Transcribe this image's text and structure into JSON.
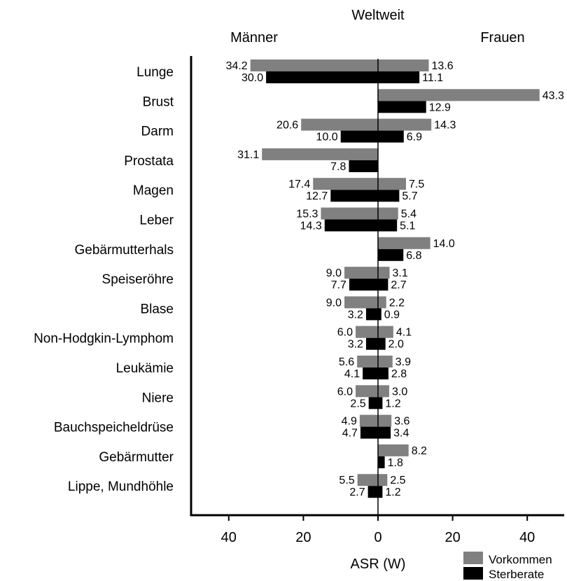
{
  "chart_data": {
    "type": "bar",
    "orientation": "horizontal-butterfly",
    "title": "Weltweit",
    "left_label": "Männer",
    "right_label": "Frauen",
    "xlabel": "ASR (W)",
    "xlim": [
      -50,
      50
    ],
    "x_ticks": [
      -40,
      -20,
      0,
      20,
      40
    ],
    "x_tick_labels": [
      "40",
      "20",
      "0",
      "20",
      "40"
    ],
    "grid": false,
    "legend_position": "bottom-right",
    "categories": [
      "Lunge",
      "Brust",
      "Darm",
      "Prostata",
      "Magen",
      "Leber",
      "Gebärmutterhals",
      "Speiseröhre",
      "Blase",
      "Non-Hodgkin-Lymphom",
      "Leukämie",
      "Niere",
      "Bauchspeicheldrüse",
      "Gebärmutter",
      "Lippe, Mundhöhle"
    ],
    "series": [
      {
        "name": "Vorkommen",
        "color": "#808080",
        "men": [
          34.2,
          null,
          20.6,
          31.1,
          17.4,
          15.3,
          null,
          9.0,
          9.0,
          6.0,
          5.6,
          6.0,
          4.9,
          null,
          5.5
        ],
        "women": [
          13.6,
          43.3,
          14.3,
          null,
          7.5,
          5.4,
          14.0,
          3.1,
          2.2,
          4.1,
          3.9,
          3.0,
          3.6,
          8.2,
          2.5
        ]
      },
      {
        "name": "Sterberate",
        "color": "#000000",
        "men": [
          30.0,
          null,
          10.0,
          7.8,
          12.7,
          14.3,
          null,
          7.7,
          3.2,
          3.2,
          4.1,
          2.5,
          4.7,
          null,
          2.7
        ],
        "women": [
          11.1,
          12.9,
          6.9,
          null,
          5.7,
          5.1,
          6.8,
          2.7,
          0.9,
          2.0,
          2.8,
          1.2,
          3.4,
          1.8,
          1.2
        ]
      }
    ]
  }
}
